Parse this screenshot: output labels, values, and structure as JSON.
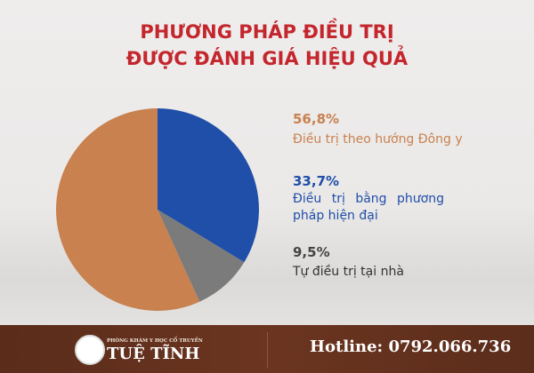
{
  "chart_data": {
    "type": "pie",
    "title": "PHƯƠNG PHÁP ĐIỀU TRỊ ĐƯỢC ĐÁNH GIÁ HIỆU QUẢ",
    "title_lines": [
      "PHƯƠNG PHÁP ĐIỀU TRỊ",
      "ĐƯỢC ĐÁNH GIÁ HIỆU QUẢ"
    ],
    "slices": [
      {
        "label": "Điều trị bằng phương pháp hiện đại",
        "value": 33.7,
        "display": "33,7%",
        "color": "#1f4fa8"
      },
      {
        "label": "Tự điều trị tại nhà",
        "value": 9.5,
        "display": "9,5%",
        "color": "#7b7b7b"
      },
      {
        "label": "Điều trị theo hướng Đông y",
        "value": 56.8,
        "display": "56,8%",
        "color": "#c8814f"
      }
    ],
    "legend_placement": "right"
  },
  "footer": {
    "clinic_subtitle": "PHÒNG KHÁM Y HỌC CỔ TRUYỀN",
    "clinic_name": "TUỆ TĨNH",
    "hotline": "Hotline: 0792.066.736"
  }
}
